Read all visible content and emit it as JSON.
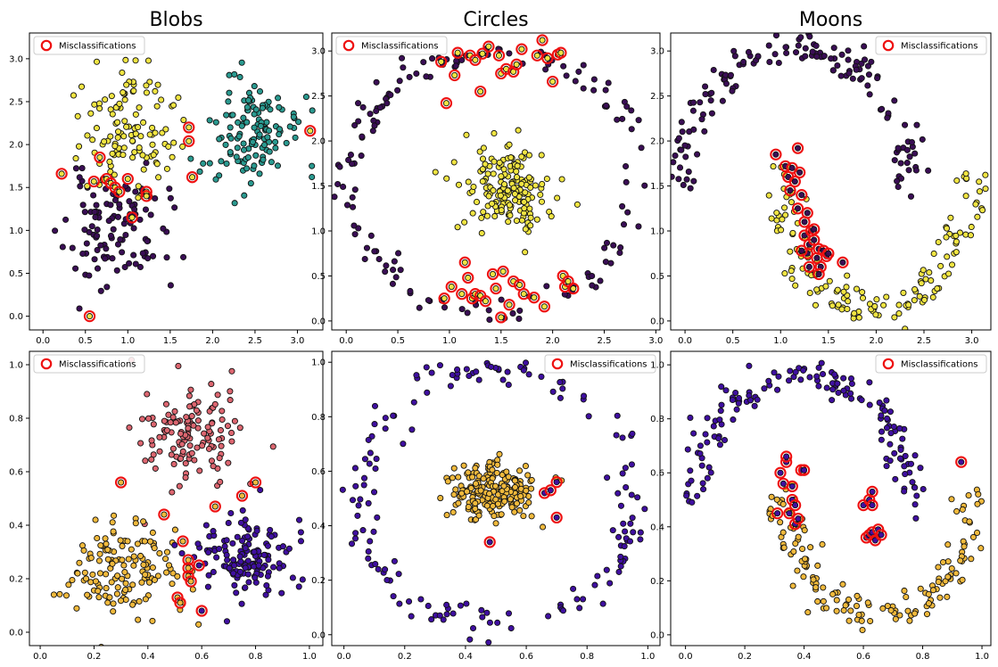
{
  "figure": {
    "colors": {
      "purple": "#3a0e55",
      "yellow": "#f0e442",
      "teal": "#2a9a90",
      "indigo": "#3f0fa0",
      "salmon": "#dc6670",
      "gold": "#f0b93c",
      "edge": "#111111",
      "misclass": "#ee1111"
    }
  },
  "chart_data": [
    {
      "type": "scatter",
      "id": "blobs-top",
      "title": "Blobs",
      "xlim": [
        -0.16,
        3.3
      ],
      "ylim": [
        -0.16,
        3.3
      ],
      "xticks": [
        0.0,
        0.5,
        1.0,
        1.5,
        2.0,
        2.5,
        3.0
      ],
      "yticks": [
        0.0,
        0.5,
        1.0,
        1.5,
        2.0,
        2.5,
        3.0
      ],
      "tick_labels_x": [
        "0.0",
        "0.5",
        "1.0",
        "1.5",
        "2.0",
        "2.5",
        "3.0"
      ],
      "tick_labels_y": [
        "0.0",
        "0.5",
        "1.0",
        "1.5",
        "2.0",
        "2.5",
        "3.0"
      ],
      "legend": {
        "label": "Misclassifications",
        "position": "upper-left"
      },
      "clusters": [
        {
          "center": [
            0.85,
            1.0
          ],
          "spread": [
            0.3,
            0.32
          ],
          "n": 110,
          "color": "purple",
          "seed": 11
        },
        {
          "center": [
            1.0,
            2.2
          ],
          "spread": [
            0.28,
            0.33
          ],
          "n": 120,
          "color": "yellow",
          "seed": 12
        },
        {
          "center": [
            2.4,
            2.15
          ],
          "spread": [
            0.3,
            0.3
          ],
          "n": 130,
          "color": "teal",
          "seed": 13
        }
      ],
      "misclassified": [
        [
          0.22,
          1.66,
          "yellow"
        ],
        [
          0.55,
          0.0,
          "yellow"
        ],
        [
          0.6,
          1.57,
          "yellow"
        ],
        [
          0.67,
          1.85,
          "yellow"
        ],
        [
          0.75,
          1.6,
          "yellow"
        ],
        [
          0.8,
          1.55,
          "yellow"
        ],
        [
          0.85,
          1.5,
          "yellow"
        ],
        [
          0.9,
          1.45,
          "yellow"
        ],
        [
          1.0,
          1.6,
          "yellow"
        ],
        [
          1.05,
          1.15,
          "yellow"
        ],
        [
          1.22,
          1.45,
          "yellow"
        ],
        [
          1.22,
          1.4,
          "yellow"
        ],
        [
          1.72,
          2.2,
          "yellow"
        ],
        [
          1.72,
          2.04,
          "yellow"
        ],
        [
          1.76,
          1.62,
          "yellow"
        ],
        [
          3.15,
          2.16,
          "yellow"
        ]
      ]
    },
    {
      "type": "scatter",
      "id": "circles-top",
      "title": "Circles",
      "xlim": [
        -0.14,
        3.04
      ],
      "ylim": [
        -0.1,
        3.2
      ],
      "xticks": [
        0.0,
        0.5,
        1.0,
        1.5,
        2.0,
        2.5,
        3.0
      ],
      "yticks": [
        0.0,
        0.5,
        1.0,
        1.5,
        2.0,
        2.5,
        3.0
      ],
      "tick_labels_x": [
        "0.0",
        "0.5",
        "1.0",
        "1.5",
        "2.0",
        "2.5",
        "3.0"
      ],
      "tick_labels_y": [
        "0.0",
        "0.5",
        "1.0",
        "1.5",
        "2.0",
        "2.5",
        "3.0"
      ],
      "legend": {
        "label": "Misclassifications",
        "position": "upper-left"
      },
      "rings": [
        {
          "center": [
            1.45,
            1.55
          ],
          "radius": [
            1.4,
            1.45
          ],
          "noise": 0.08,
          "n": 150,
          "color": "purple",
          "seed": 21
        }
      ],
      "clusters": [
        {
          "center": [
            1.55,
            1.5
          ],
          "spread": [
            0.22,
            0.22
          ],
          "n": 170,
          "color": "yellow",
          "seed": 22
        }
      ],
      "misclassified": [
        [
          0.92,
          2.88,
          "yellow"
        ],
        [
          0.97,
          2.42,
          "yellow"
        ],
        [
          1.05,
          2.73,
          "yellow"
        ],
        [
          1.08,
          2.98,
          "yellow"
        ],
        [
          1.2,
          2.95,
          "yellow"
        ],
        [
          1.25,
          2.9,
          "yellow"
        ],
        [
          1.3,
          2.55,
          "yellow"
        ],
        [
          1.32,
          2.97,
          "yellow"
        ],
        [
          1.38,
          3.05,
          "yellow"
        ],
        [
          1.48,
          2.95,
          "yellow"
        ],
        [
          1.5,
          2.75,
          "yellow"
        ],
        [
          1.55,
          2.8,
          "yellow"
        ],
        [
          1.62,
          2.77,
          "yellow"
        ],
        [
          1.65,
          2.85,
          "yellow"
        ],
        [
          1.7,
          3.02,
          "yellow"
        ],
        [
          1.85,
          2.95,
          "yellow"
        ],
        [
          1.9,
          3.12,
          "yellow"
        ],
        [
          1.95,
          2.92,
          "yellow"
        ],
        [
          2.0,
          2.66,
          "yellow"
        ],
        [
          2.05,
          2.96,
          "yellow"
        ],
        [
          2.08,
          2.98,
          "yellow"
        ],
        [
          0.95,
          0.25,
          "yellow"
        ],
        [
          1.02,
          0.38,
          "yellow"
        ],
        [
          1.12,
          0.3,
          "yellow"
        ],
        [
          1.15,
          0.65,
          "yellow"
        ],
        [
          1.18,
          0.48,
          "yellow"
        ],
        [
          1.22,
          0.25,
          "yellow"
        ],
        [
          1.25,
          0.3,
          "yellow"
        ],
        [
          1.3,
          0.28,
          "yellow"
        ],
        [
          1.35,
          0.22,
          "yellow"
        ],
        [
          1.42,
          0.52,
          "yellow"
        ],
        [
          1.45,
          0.36,
          "yellow"
        ],
        [
          1.5,
          0.04,
          "yellow"
        ],
        [
          1.52,
          0.55,
          "yellow"
        ],
        [
          1.58,
          0.18,
          "yellow"
        ],
        [
          1.62,
          0.44,
          "yellow"
        ],
        [
          1.68,
          0.4,
          "yellow"
        ],
        [
          1.72,
          0.3,
          "yellow"
        ],
        [
          1.82,
          0.26,
          "yellow"
        ],
        [
          1.92,
          0.16,
          "yellow"
        ],
        [
          2.1,
          0.5,
          "yellow"
        ],
        [
          2.12,
          0.38,
          "yellow"
        ],
        [
          2.15,
          0.44,
          "yellow"
        ],
        [
          2.2,
          0.36,
          "yellow"
        ]
      ]
    },
    {
      "type": "scatter",
      "id": "moons-top",
      "title": "Moons",
      "xlim": [
        -0.15,
        3.2
      ],
      "ylim": [
        -0.1,
        3.2
      ],
      "xticks": [
        0.0,
        0.5,
        1.0,
        1.5,
        2.0,
        2.5,
        3.0
      ],
      "yticks": [
        0.0,
        0.5,
        1.0,
        1.5,
        2.0,
        2.5,
        3.0
      ],
      "tick_labels_x": [
        "0.0",
        "0.5",
        "1.0",
        "1.5",
        "2.0",
        "2.5",
        "3.0"
      ],
      "tick_labels_y": [
        "0.0",
        "0.5",
        "1.0",
        "1.5",
        "2.0",
        "2.5",
        "3.0"
      ],
      "legend": {
        "label": "Misclassifications",
        "position": "upper-right"
      },
      "arcs": [
        {
          "center": [
            1.15,
            1.45
          ],
          "radius": [
            1.2,
            1.6
          ],
          "angle": [
            0,
            180
          ],
          "noise": 0.1,
          "n": 150,
          "color": "purple",
          "seed": 31
        },
        {
          "center": [
            2.0,
            1.7
          ],
          "radius": [
            1.0,
            1.6
          ],
          "angle": [
            180,
            360
          ],
          "noise": 0.1,
          "n": 150,
          "color": "yellow",
          "seed": 32
        }
      ],
      "misclassified": [
        [
          0.95,
          1.85,
          "purple"
        ],
        [
          1.05,
          1.72,
          "purple"
        ],
        [
          1.08,
          1.6,
          "purple"
        ],
        [
          1.1,
          1.45,
          "purple"
        ],
        [
          1.12,
          1.7,
          "purple"
        ],
        [
          1.15,
          1.55,
          "purple"
        ],
        [
          1.18,
          1.92,
          "purple"
        ],
        [
          1.2,
          1.65,
          "purple"
        ],
        [
          1.18,
          1.25,
          "purple"
        ],
        [
          1.22,
          1.4,
          "purple"
        ],
        [
          1.25,
          1.1,
          "purple"
        ],
        [
          1.25,
          0.95,
          "purple"
        ],
        [
          1.28,
          1.2,
          "purple"
        ],
        [
          1.28,
          0.75,
          "purple"
        ],
        [
          1.3,
          0.85,
          "purple"
        ],
        [
          1.3,
          0.6,
          "purple"
        ],
        [
          1.32,
          1.0,
          "purple"
        ],
        [
          1.35,
          0.9,
          "purple"
        ],
        [
          1.38,
          0.7,
          "purple"
        ],
        [
          1.4,
          0.8,
          "purple"
        ],
        [
          1.42,
          0.6,
          "purple"
        ],
        [
          1.45,
          0.78,
          "purple"
        ],
        [
          1.48,
          0.72,
          "purple"
        ],
        [
          1.5,
          0.75,
          "purple"
        ],
        [
          1.22,
          0.78,
          "purple"
        ],
        [
          1.35,
          1.02,
          "purple"
        ],
        [
          1.4,
          0.52,
          "purple"
        ],
        [
          1.65,
          0.65,
          "purple"
        ]
      ]
    },
    {
      "type": "scatter",
      "id": "blobs-bottom",
      "title": "",
      "xlim": [
        -0.04,
        1.05
      ],
      "ylim": [
        -0.05,
        1.05
      ],
      "xticks": [
        0.0,
        0.2,
        0.4,
        0.6,
        0.8,
        1.0
      ],
      "yticks": [
        0.0,
        0.2,
        0.4,
        0.6,
        0.8,
        1.0
      ],
      "tick_labels_x": [
        "0.0",
        "0.2",
        "0.4",
        "0.6",
        "0.8",
        "1.0"
      ],
      "tick_labels_y": [
        "0.0",
        "0.2",
        "0.4",
        "0.6",
        "0.8",
        "1.0"
      ],
      "legend": {
        "label": "Misclassifications",
        "position": "upper-left"
      },
      "clusters": [
        {
          "center": [
            0.57,
            0.74
          ],
          "spread": [
            0.09,
            0.1
          ],
          "n": 130,
          "color": "salmon",
          "seed": 41
        },
        {
          "center": [
            0.3,
            0.24
          ],
          "spread": [
            0.11,
            0.09
          ],
          "n": 140,
          "color": "gold",
          "seed": 42
        },
        {
          "center": [
            0.76,
            0.27
          ],
          "spread": [
            0.09,
            0.08
          ],
          "n": 140,
          "color": "indigo",
          "seed": 43
        }
      ],
      "misclassified": [
        [
          0.3,
          0.56,
          "gold"
        ],
        [
          0.46,
          0.44,
          "gold"
        ],
        [
          0.51,
          0.13,
          "gold"
        ],
        [
          0.52,
          0.11,
          "gold"
        ],
        [
          0.53,
          0.34,
          "gold"
        ],
        [
          0.55,
          0.27,
          "gold"
        ],
        [
          0.55,
          0.24,
          "gold"
        ],
        [
          0.55,
          0.21,
          "gold"
        ],
        [
          0.56,
          0.19,
          "gold"
        ],
        [
          0.59,
          0.25,
          "indigo"
        ],
        [
          0.6,
          0.08,
          "indigo"
        ],
        [
          0.65,
          0.47,
          "gold"
        ],
        [
          0.75,
          0.51,
          "gold"
        ],
        [
          0.8,
          0.56,
          "gold"
        ]
      ]
    },
    {
      "type": "scatter",
      "id": "circles-bottom",
      "title": "",
      "xlim": [
        -0.04,
        1.04
      ],
      "ylim": [
        -0.04,
        1.04
      ],
      "xticks": [
        0.0,
        0.2,
        0.4,
        0.6,
        0.8,
        1.0
      ],
      "yticks": [
        0.0,
        0.2,
        0.4,
        0.6,
        0.8,
        1.0
      ],
      "tick_labels_x": [
        "0.0",
        "0.2",
        "0.4",
        "0.6",
        "0.8",
        "1.0"
      ],
      "tick_labels_y": [
        "0.0",
        "0.2",
        "0.4",
        "0.6",
        "0.8",
        "1.0"
      ],
      "legend": {
        "label": "Misclassifications",
        "position": "upper-right"
      },
      "rings": [
        {
          "center": [
            0.5,
            0.5
          ],
          "radius": [
            0.45,
            0.47
          ],
          "noise": 0.03,
          "n": 160,
          "color": "indigo",
          "seed": 51
        }
      ],
      "clusters": [
        {
          "center": [
            0.5,
            0.53
          ],
          "spread": [
            0.065,
            0.055
          ],
          "n": 210,
          "color": "gold",
          "seed": 52
        }
      ],
      "misclassified": [
        [
          0.48,
          0.34,
          "indigo"
        ],
        [
          0.66,
          0.52,
          "indigo"
        ],
        [
          0.68,
          0.53,
          "indigo"
        ],
        [
          0.7,
          0.56,
          "indigo"
        ],
        [
          0.7,
          0.43,
          "indigo"
        ]
      ]
    },
    {
      "type": "scatter",
      "id": "moons-bottom",
      "title": "",
      "xlim": [
        -0.05,
        1.03
      ],
      "ylim": [
        -0.04,
        1.05
      ],
      "xticks": [
        0.0,
        0.2,
        0.4,
        0.6,
        0.8,
        1.0
      ],
      "yticks": [
        0.0,
        0.2,
        0.4,
        0.6,
        0.8,
        1.0
      ],
      "tick_labels_x": [
        "0.0",
        "0.2",
        "0.4",
        "0.6",
        "0.8",
        "1.0"
      ],
      "tick_labels_y": [
        "0.0",
        "0.2",
        "0.4",
        "0.6",
        "0.8",
        "1.0"
      ],
      "legend": {
        "label": "Misclassifications",
        "position": "upper-right"
      },
      "arcs": [
        {
          "center": [
            0.39,
            0.48
          ],
          "radius": [
            0.37,
            0.48
          ],
          "angle": [
            0,
            180
          ],
          "noise": 0.03,
          "n": 150,
          "color": "indigo",
          "seed": 61
        },
        {
          "center": [
            0.65,
            0.55
          ],
          "radius": [
            0.32,
            0.48
          ],
          "angle": [
            180,
            360
          ],
          "noise": 0.03,
          "n": 150,
          "color": "gold",
          "seed": 62
        }
      ],
      "misclassified": [
        [
          0.31,
          0.45,
          "indigo"
        ],
        [
          0.32,
          0.6,
          "indigo"
        ],
        [
          0.33,
          0.56,
          "indigo"
        ],
        [
          0.34,
          0.64,
          "indigo"
        ],
        [
          0.34,
          0.66,
          "indigo"
        ],
        [
          0.35,
          0.45,
          "indigo"
        ],
        [
          0.36,
          0.55,
          "indigo"
        ],
        [
          0.36,
          0.5,
          "indigo"
        ],
        [
          0.37,
          0.48,
          "indigo"
        ],
        [
          0.37,
          0.41,
          "indigo"
        ],
        [
          0.38,
          0.43,
          "indigo"
        ],
        [
          0.39,
          0.61,
          "indigo"
        ],
        [
          0.4,
          0.61,
          "indigo"
        ],
        [
          0.6,
          0.48,
          "indigo"
        ],
        [
          0.61,
          0.36,
          "indigo"
        ],
        [
          0.62,
          0.5,
          "indigo"
        ],
        [
          0.62,
          0.37,
          "indigo"
        ],
        [
          0.63,
          0.53,
          "indigo"
        ],
        [
          0.63,
          0.48,
          "indigo"
        ],
        [
          0.63,
          0.38,
          "indigo"
        ],
        [
          0.64,
          0.35,
          "indigo"
        ],
        [
          0.65,
          0.39,
          "indigo"
        ],
        [
          0.66,
          0.37,
          "indigo"
        ],
        [
          0.93,
          0.64,
          "indigo"
        ]
      ]
    }
  ]
}
